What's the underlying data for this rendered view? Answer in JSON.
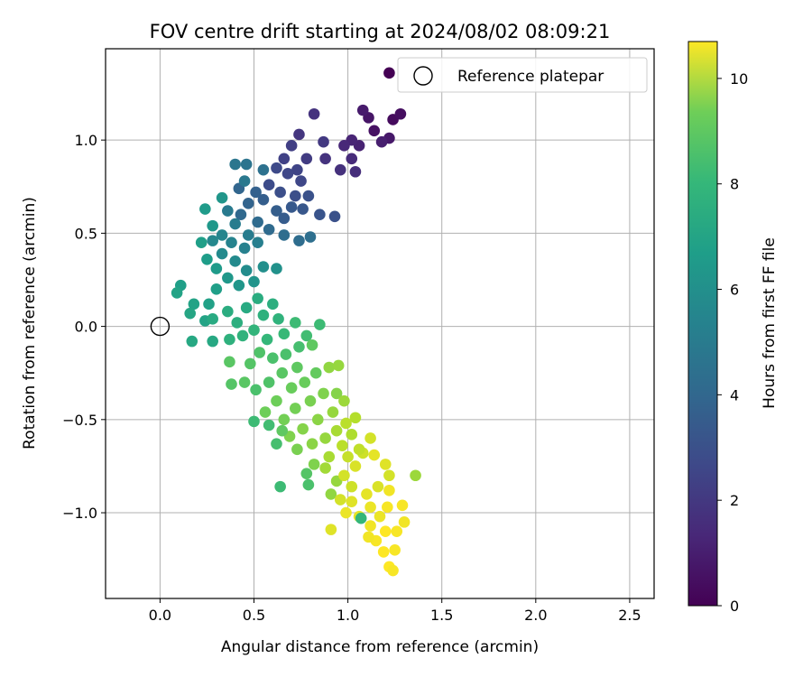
{
  "chart_data": {
    "type": "scatter",
    "title": "FOV centre drift starting at 2024/08/02 08:09:21",
    "xlabel": "Angular distance from reference (arcmin)",
    "ylabel": "Rotation from reference (arcmin)",
    "xlim": [
      -0.29,
      2.63
    ],
    "ylim": [
      -1.46,
      1.49
    ],
    "xticks": [
      0.0,
      0.5,
      1.0,
      1.5,
      2.0,
      2.5
    ],
    "xtick_labels": [
      "0.0",
      "0.5",
      "1.0",
      "1.5",
      "2.0",
      "2.5"
    ],
    "yticks": [
      -1.0,
      -0.5,
      0.0,
      0.5,
      1.0
    ],
    "ytick_labels": [
      "−1.0",
      "−0.5",
      "0.0",
      "0.5",
      "1.0"
    ],
    "grid": true,
    "legend_position": "top-right",
    "legend_entries": [
      "Reference platepar"
    ],
    "reference_point": {
      "x": 0.0,
      "y": 0.0,
      "label": "Reference platepar"
    },
    "colorbar": {
      "label": "Hours from first FF file",
      "range": [
        0,
        10.7
      ],
      "ticks": [
        0,
        2,
        4,
        6,
        8,
        10
      ],
      "tick_labels": [
        "0",
        "2",
        "4",
        "6",
        "8",
        "10"
      ],
      "colormap": "viridis"
    },
    "series": [
      {
        "points": [
          [
            1.22,
            1.36,
            0.0
          ],
          [
            1.24,
            1.11,
            0.3
          ],
          [
            1.14,
            1.05,
            0.5
          ],
          [
            1.11,
            1.12,
            0.6
          ],
          [
            1.08,
            1.16,
            0.8
          ],
          [
            1.28,
            1.14,
            0.4
          ],
          [
            1.22,
            1.01,
            0.7
          ],
          [
            1.18,
            0.99,
            0.9
          ],
          [
            1.06,
            0.97,
            1.0
          ],
          [
            1.02,
            1.0,
            1.1
          ],
          [
            0.98,
            0.97,
            1.2
          ],
          [
            1.02,
            0.9,
            1.3
          ],
          [
            1.04,
            0.83,
            1.4
          ],
          [
            0.96,
            0.84,
            1.5
          ],
          [
            0.88,
            0.9,
            1.6
          ],
          [
            0.82,
            1.14,
            1.6
          ],
          [
            0.74,
            1.03,
            1.7
          ],
          [
            0.87,
            0.99,
            1.8
          ],
          [
            0.78,
            0.9,
            1.9
          ],
          [
            0.7,
            0.97,
            2.0
          ],
          [
            0.66,
            0.9,
            2.1
          ],
          [
            0.73,
            0.84,
            2.2
          ],
          [
            0.75,
            0.78,
            2.3
          ],
          [
            0.68,
            0.82,
            2.3
          ],
          [
            0.62,
            0.85,
            2.4
          ],
          [
            0.58,
            0.76,
            2.5
          ],
          [
            0.64,
            0.72,
            2.6
          ],
          [
            0.72,
            0.7,
            2.6
          ],
          [
            0.79,
            0.7,
            2.7
          ],
          [
            0.93,
            0.59,
            2.7
          ],
          [
            0.85,
            0.6,
            2.8
          ],
          [
            0.76,
            0.63,
            2.9
          ],
          [
            0.7,
            0.64,
            3.0
          ],
          [
            0.66,
            0.58,
            3.1
          ],
          [
            0.62,
            0.62,
            3.2
          ],
          [
            0.55,
            0.68,
            3.2
          ],
          [
            0.51,
            0.72,
            3.3
          ],
          [
            0.47,
            0.66,
            3.4
          ],
          [
            0.42,
            0.74,
            3.5
          ],
          [
            0.43,
            0.6,
            3.6
          ],
          [
            0.52,
            0.56,
            3.7
          ],
          [
            0.58,
            0.52,
            3.7
          ],
          [
            0.66,
            0.49,
            3.8
          ],
          [
            0.74,
            0.46,
            3.8
          ],
          [
            0.8,
            0.48,
            3.9
          ],
          [
            0.55,
            0.84,
            4.0
          ],
          [
            0.46,
            0.87,
            4.1
          ],
          [
            0.4,
            0.87,
            4.2
          ],
          [
            0.45,
            0.78,
            4.3
          ],
          [
            0.36,
            0.62,
            4.4
          ],
          [
            0.4,
            0.55,
            4.5
          ],
          [
            0.47,
            0.49,
            4.5
          ],
          [
            0.52,
            0.45,
            4.6
          ],
          [
            0.45,
            0.42,
            4.7
          ],
          [
            0.38,
            0.45,
            4.8
          ],
          [
            0.33,
            0.49,
            4.9
          ],
          [
            0.28,
            0.46,
            5.0
          ],
          [
            0.33,
            0.39,
            5.1
          ],
          [
            0.4,
            0.35,
            5.1
          ],
          [
            0.46,
            0.3,
            5.2
          ],
          [
            0.55,
            0.32,
            5.3
          ],
          [
            0.62,
            0.31,
            5.4
          ],
          [
            0.5,
            0.24,
            5.5
          ],
          [
            0.42,
            0.22,
            5.6
          ],
          [
            0.36,
            0.26,
            5.7
          ],
          [
            0.3,
            0.31,
            5.8
          ],
          [
            0.25,
            0.36,
            5.9
          ],
          [
            0.22,
            0.45,
            6.0
          ],
          [
            0.24,
            0.63,
            5.8
          ],
          [
            0.33,
            0.69,
            5.6
          ],
          [
            0.28,
            0.54,
            5.7
          ],
          [
            0.3,
            0.2,
            6.0
          ],
          [
            0.26,
            0.12,
            6.1
          ],
          [
            0.18,
            0.12,
            6.2
          ],
          [
            0.11,
            0.22,
            6.0
          ],
          [
            0.09,
            0.18,
            6.2
          ],
          [
            0.16,
            0.07,
            6.3
          ],
          [
            0.24,
            0.03,
            6.2
          ],
          [
            0.28,
            -0.08,
            6.4
          ],
          [
            0.17,
            -0.08,
            6.4
          ],
          [
            0.28,
            0.04,
            6.5
          ],
          [
            0.36,
            0.08,
            6.6
          ],
          [
            0.41,
            0.02,
            6.7
          ],
          [
            0.46,
            0.1,
            6.5
          ],
          [
            0.52,
            0.15,
            6.6
          ],
          [
            0.6,
            0.12,
            6.7
          ],
          [
            0.55,
            0.06,
            6.8
          ],
          [
            0.63,
            0.04,
            6.9
          ],
          [
            0.37,
            -0.07,
            6.8
          ],
          [
            0.44,
            -0.05,
            6.9
          ],
          [
            0.5,
            -0.02,
            7.0
          ],
          [
            0.57,
            -0.07,
            7.1
          ],
          [
            0.66,
            -0.04,
            7.2
          ],
          [
            0.72,
            0.02,
            7.3
          ],
          [
            0.85,
            0.01,
            7.3
          ],
          [
            0.78,
            -0.05,
            7.4
          ],
          [
            0.74,
            -0.11,
            7.5
          ],
          [
            0.67,
            -0.15,
            7.6
          ],
          [
            0.6,
            -0.17,
            7.6
          ],
          [
            0.53,
            -0.14,
            7.7
          ],
          [
            0.48,
            -0.2,
            7.8
          ],
          [
            0.37,
            -0.19,
            7.9
          ],
          [
            0.45,
            -0.3,
            7.9
          ],
          [
            0.38,
            -0.31,
            7.8
          ],
          [
            0.51,
            -0.34,
            7.6
          ],
          [
            0.58,
            -0.3,
            7.7
          ],
          [
            0.65,
            -0.25,
            7.9
          ],
          [
            0.73,
            -0.22,
            8.0
          ],
          [
            0.81,
            -0.1,
            8.0
          ],
          [
            0.83,
            -0.25,
            8.1
          ],
          [
            0.77,
            -0.3,
            8.2
          ],
          [
            0.7,
            -0.33,
            8.2
          ],
          [
            0.62,
            -0.4,
            8.3
          ],
          [
            0.56,
            -0.46,
            8.3
          ],
          [
            0.5,
            -0.51,
            7.3
          ],
          [
            0.58,
            -0.53,
            7.4
          ],
          [
            0.66,
            -0.5,
            8.4
          ],
          [
            0.72,
            -0.44,
            8.4
          ],
          [
            0.8,
            -0.4,
            8.5
          ],
          [
            0.87,
            -0.36,
            8.6
          ],
          [
            0.9,
            -0.22,
            8.9
          ],
          [
            0.95,
            -0.21,
            9.0
          ],
          [
            0.94,
            -0.36,
            8.7
          ],
          [
            0.98,
            -0.4,
            9.1
          ],
          [
            0.92,
            -0.46,
            9.0
          ],
          [
            0.84,
            -0.5,
            8.8
          ],
          [
            0.76,
            -0.55,
            8.7
          ],
          [
            0.69,
            -0.59,
            8.6
          ],
          [
            0.62,
            -0.63,
            7.5
          ],
          [
            0.65,
            -0.56,
            8.0
          ],
          [
            0.73,
            -0.66,
            8.5
          ],
          [
            0.81,
            -0.63,
            8.8
          ],
          [
            0.88,
            -0.6,
            9.0
          ],
          [
            0.94,
            -0.56,
            9.3
          ],
          [
            1.04,
            -0.49,
            9.5
          ],
          [
            1.02,
            -0.58,
            9.4
          ],
          [
            0.97,
            -0.64,
            9.6
          ],
          [
            0.9,
            -0.7,
            9.3
          ],
          [
            0.82,
            -0.74,
            8.6
          ],
          [
            0.78,
            -0.79,
            7.8
          ],
          [
            0.79,
            -0.85,
            7.6
          ],
          [
            0.64,
            -0.86,
            7.3
          ],
          [
            0.88,
            -0.76,
            9.2
          ],
          [
            0.94,
            -0.83,
            9.0
          ],
          [
            0.91,
            -0.9,
            8.9
          ],
          [
            0.98,
            -0.8,
            10.0
          ],
          [
            1.04,
            -0.75,
            10.1
          ],
          [
            1.08,
            -0.68,
            9.9
          ],
          [
            1.12,
            -0.6,
            10.0
          ],
          [
            1.14,
            -0.69,
            10.3
          ],
          [
            1.2,
            -0.74,
            10.2
          ],
          [
            1.22,
            -0.8,
            10.0
          ],
          [
            1.16,
            -0.86,
            10.1
          ],
          [
            1.1,
            -0.9,
            10.3
          ],
          [
            1.02,
            -0.94,
            10.2
          ],
          [
            0.99,
            -1.0,
            10.4
          ],
          [
            1.06,
            -1.02,
            10.3
          ],
          [
            1.12,
            -1.07,
            10.5
          ],
          [
            1.17,
            -1.02,
            10.4
          ],
          [
            1.21,
            -0.97,
            10.6
          ],
          [
            1.22,
            -0.88,
            10.5
          ],
          [
            1.29,
            -0.96,
            10.6
          ],
          [
            1.3,
            -1.05,
            10.5
          ],
          [
            1.26,
            -1.1,
            10.6
          ],
          [
            1.2,
            -1.1,
            10.7
          ],
          [
            1.15,
            -1.15,
            10.6
          ],
          [
            1.11,
            -1.13,
            10.5
          ],
          [
            1.19,
            -1.21,
            10.7
          ],
          [
            1.25,
            -1.2,
            10.6
          ],
          [
            1.22,
            -1.29,
            10.7
          ],
          [
            1.24,
            -1.31,
            10.6
          ],
          [
            1.36,
            -0.8,
            9.1
          ],
          [
            0.91,
            -1.09,
            10.2
          ],
          [
            1.07,
            -1.03,
            7.1
          ],
          [
            1.02,
            -0.86,
            9.9
          ],
          [
            0.96,
            -0.93,
            10.0
          ],
          [
            1.0,
            -0.7,
            9.8
          ],
          [
            1.06,
            -0.66,
            9.7
          ],
          [
            0.99,
            -0.52,
            9.6
          ],
          [
            1.12,
            -0.97,
            10.4
          ]
        ]
      }
    ]
  }
}
